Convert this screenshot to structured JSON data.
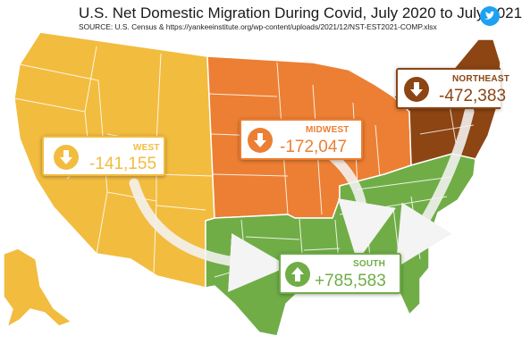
{
  "header": {
    "title": "U.S. Net Domestic Migration During Covid, July 2020 to July 2021",
    "source": "SOURCE: U.S. Census & https://yankeeinstitute.org/wp-content/uploads/2021/12/NST-EST2021-COMP.xlsx"
  },
  "icons": {
    "twitter": "twitter-bird-icon",
    "down": "down-arrow-icon",
    "up": "up-arrow-icon"
  },
  "colors": {
    "west": "#f2bc3f",
    "midwest": "#ec7f33",
    "northeast": "#8c4513",
    "south": "#70ad47",
    "border": "#ffffff",
    "twitter": "#1da1f2"
  },
  "regions": {
    "west": {
      "label": "WEST",
      "value": "-141,155"
    },
    "midwest": {
      "label": "MIDWEST",
      "value": "-172,047"
    },
    "northeast": {
      "label": "NORTHEAST",
      "value": "-472,383"
    },
    "south": {
      "label": "SOUTH",
      "value": "+785,583"
    }
  }
}
